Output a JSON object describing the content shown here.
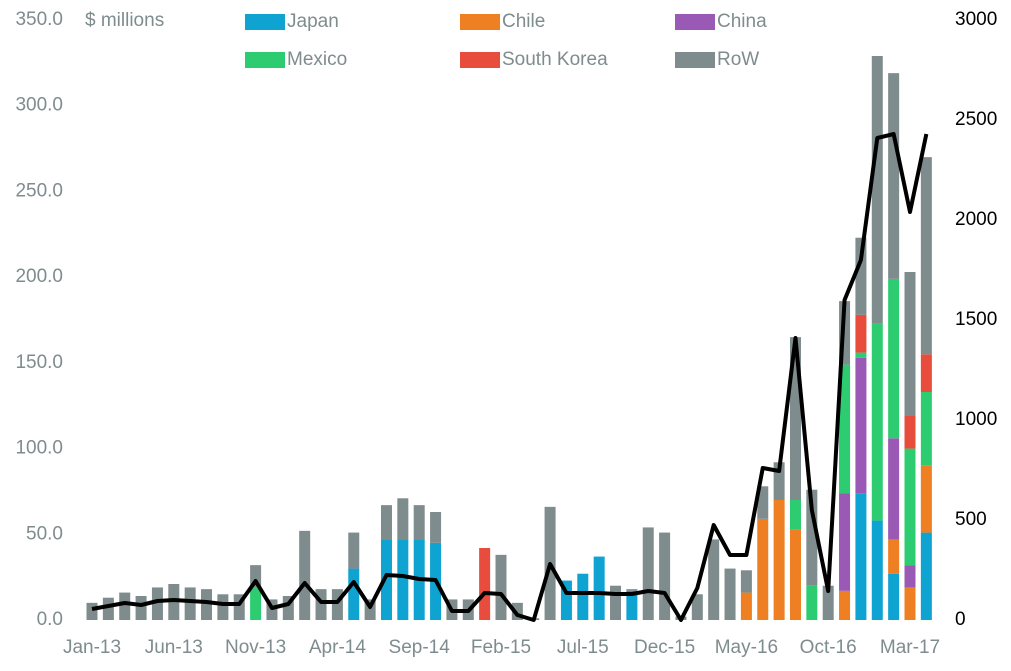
{
  "chart_data": {
    "type": "bar",
    "stacked": true,
    "ylabel": "$ millions",
    "categories": [
      "Jan-13",
      null,
      null,
      null,
      null,
      "Jun-13",
      null,
      null,
      null,
      null,
      "Nov-13",
      null,
      null,
      null,
      null,
      "Apr-14",
      null,
      null,
      null,
      null,
      "Sep-14",
      null,
      null,
      null,
      null,
      "Feb-15",
      null,
      null,
      null,
      null,
      "Jul-15",
      null,
      null,
      null,
      null,
      "Dec-15",
      null,
      null,
      null,
      null,
      "May-16",
      null,
      null,
      null,
      null,
      "Oct-16",
      null,
      null,
      null,
      null,
      "Mar-17",
      null
    ],
    "ylim": [
      0,
      350
    ],
    "yticks": [
      {
        "value": 0,
        "label": "0.0"
      },
      {
        "value": 50,
        "label": "50.0"
      },
      {
        "value": 100,
        "label": "100.0"
      },
      {
        "value": 150,
        "label": "150.0"
      },
      {
        "value": 200,
        "label": "200.0"
      },
      {
        "value": 250,
        "label": "250.0"
      },
      {
        "value": 300,
        "label": "300.0"
      },
      {
        "value": 350,
        "label": "350.0"
      }
    ],
    "y2lim": [
      0,
      3000
    ],
    "y2ticks": [
      0,
      500,
      1000,
      1500,
      2000,
      2500,
      3000
    ],
    "series": [
      {
        "name": "Japan",
        "color": "#0fa3d2",
        "values": [
          0,
          0,
          0,
          0,
          0,
          0,
          0,
          0,
          0,
          0,
          0,
          0,
          0,
          0,
          0,
          0,
          30,
          0,
          47,
          47,
          47,
          45,
          0,
          0,
          0,
          0,
          0,
          0,
          0,
          23,
          27,
          37,
          0,
          17,
          0,
          0,
          0,
          0,
          0,
          0,
          0,
          0,
          0,
          0,
          0,
          0,
          0,
          74,
          58,
          27,
          0,
          51
        ]
      },
      {
        "name": "Chile",
        "color": "#ee7f22",
        "values": [
          0,
          0,
          0,
          0,
          0,
          0,
          0,
          0,
          0,
          0,
          0,
          0,
          0,
          0,
          0,
          0,
          0,
          0,
          0,
          0,
          0,
          0,
          0,
          0,
          0,
          0,
          0,
          0,
          0,
          0,
          0,
          0,
          0,
          0,
          0,
          0,
          0,
          0,
          0,
          0,
          16,
          59,
          70,
          53,
          0,
          0,
          17,
          0,
          0,
          20,
          19,
          39
        ]
      },
      {
        "name": "China",
        "color": "#9b59b6",
        "values": [
          0,
          0,
          0,
          0,
          0,
          0,
          0,
          0,
          0,
          0,
          0,
          0,
          0,
          0,
          0,
          0,
          0,
          0,
          0,
          0,
          0,
          0,
          0,
          0,
          0,
          0,
          0,
          0,
          0,
          0,
          0,
          0,
          0,
          0,
          0,
          0,
          0,
          0,
          0,
          0,
          0,
          0,
          0,
          0,
          0,
          0,
          57,
          79,
          0,
          59,
          13,
          0
        ]
      },
      {
        "name": "Mexico",
        "color": "#2ecc71",
        "values": [
          0,
          0,
          0,
          0,
          0,
          0,
          0,
          0,
          0,
          0,
          19,
          0,
          0,
          0,
          0,
          0,
          0,
          0,
          0,
          0,
          0,
          0,
          0,
          0,
          0,
          0,
          0,
          0,
          0,
          0,
          0,
          0,
          0,
          0,
          0,
          0,
          0,
          0,
          0,
          0,
          0,
          0,
          0,
          17,
          20,
          0,
          75,
          3,
          115,
          93,
          68,
          43
        ]
      },
      {
        "name": "South Korea",
        "color": "#e74c3c",
        "values": [
          0,
          0,
          0,
          0,
          0,
          0,
          0,
          0,
          0,
          0,
          0,
          0,
          0,
          0,
          0,
          0,
          0,
          0,
          0,
          0,
          0,
          0,
          0,
          0,
          42,
          0,
          0,
          0,
          0,
          0,
          0,
          0,
          0,
          0,
          0,
          0,
          0,
          0,
          0,
          0,
          0,
          0,
          0,
          0,
          0,
          0,
          0,
          22,
          0,
          0,
          19,
          22
        ]
      },
      {
        "name": "RoW",
        "color": "#7f8c8d",
        "values": [
          10,
          13,
          16,
          14,
          19,
          21,
          19,
          18,
          15,
          15,
          13,
          12,
          14,
          52,
          18,
          18,
          21,
          12,
          20,
          24,
          20,
          18,
          12,
          12,
          0,
          38,
          10,
          1,
          66,
          0,
          0,
          0,
          20,
          1,
          54,
          51,
          2,
          15,
          47,
          30,
          13,
          19,
          22,
          95,
          56,
          20,
          37,
          45,
          156,
          120,
          84,
          115
        ]
      },
      {
        "type": "line",
        "axis": "y2",
        "color": "#000000",
        "values": [
          55,
          70,
          85,
          75,
          95,
          100,
          95,
          90,
          80,
          80,
          195,
          60,
          80,
          185,
          90,
          90,
          190,
          65,
          225,
          220,
          205,
          200,
          45,
          45,
          135,
          130,
          25,
          0,
          280,
          135,
          135,
          135,
          130,
          130,
          145,
          135,
          0,
          160,
          475,
          325,
          325,
          760,
          745,
          1410,
          550,
          145,
          1600,
          1800,
          2410,
          2430,
          2040,
          2430
        ]
      }
    ]
  }
}
